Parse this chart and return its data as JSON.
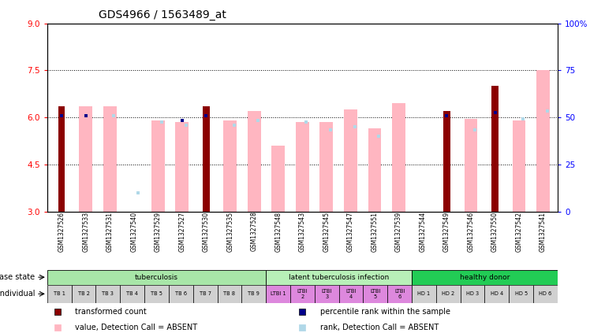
{
  "title": "GDS4966 / 1563489_at",
  "samples": [
    "GSM1327526",
    "GSM1327533",
    "GSM1327531",
    "GSM1327540",
    "GSM1327529",
    "GSM1327527",
    "GSM1327530",
    "GSM1327535",
    "GSM1327528",
    "GSM1327548",
    "GSM1327543",
    "GSM1327545",
    "GSM1327547",
    "GSM1327551",
    "GSM1327539",
    "GSM1327544",
    "GSM1327549",
    "GSM1327546",
    "GSM1327550",
    "GSM1327542",
    "GSM1327541"
  ],
  "transformed_count": [
    6.35,
    null,
    null,
    null,
    null,
    null,
    6.35,
    null,
    null,
    null,
    null,
    null,
    null,
    null,
    null,
    null,
    6.2,
    null,
    7.0,
    null,
    null
  ],
  "pct_rank": [
    6.05,
    6.05,
    null,
    null,
    null,
    5.9,
    6.05,
    null,
    null,
    null,
    null,
    null,
    null,
    null,
    null,
    null,
    6.05,
    null,
    6.15,
    null,
    null
  ],
  "absent_value": [
    null,
    6.35,
    6.35,
    null,
    5.9,
    5.85,
    null,
    5.9,
    6.2,
    5.1,
    5.85,
    5.85,
    6.25,
    5.65,
    6.45,
    null,
    null,
    5.95,
    null,
    5.9,
    7.5
  ],
  "absent_rank": [
    null,
    null,
    6.05,
    3.6,
    5.85,
    5.75,
    null,
    5.75,
    5.9,
    null,
    5.85,
    5.6,
    5.7,
    5.4,
    null,
    null,
    null,
    5.6,
    null,
    5.95,
    6.2
  ],
  "disease_groups": [
    {
      "label": "tuberculosis",
      "start": 0,
      "end": 9,
      "color": "#a8e6a8"
    },
    {
      "label": "latent tuberculosis infection",
      "start": 9,
      "end": 15,
      "color": "#b8f0b8"
    },
    {
      "label": "healthy donor",
      "start": 15,
      "end": 21,
      "color": "#22cc55"
    }
  ],
  "individual_labels": [
    "TB 1",
    "TB 2",
    "TB 3",
    "TB 4",
    "TB 5",
    "TB 6",
    "TB 7",
    "TB 8",
    "TB 9",
    "LTBI 1",
    "LTBI\n2",
    "LTBI\n3",
    "LTBI\n4",
    "LTBI\n5",
    "LTBI\n6",
    "HD 1",
    "HD 2",
    "HD 3",
    "HD 4",
    "HD 5",
    "HD 6"
  ],
  "individual_colors": [
    "#d0d0d0",
    "#d0d0d0",
    "#d0d0d0",
    "#d0d0d0",
    "#d0d0d0",
    "#d0d0d0",
    "#d0d0d0",
    "#d0d0d0",
    "#d0d0d0",
    "#dd88dd",
    "#dd88dd",
    "#dd88dd",
    "#dd88dd",
    "#dd88dd",
    "#dd88dd",
    "#d0d0d0",
    "#d0d0d0",
    "#d0d0d0",
    "#d0d0d0",
    "#d0d0d0",
    "#d0d0d0"
  ],
  "ylim_left": [
    3,
    9
  ],
  "ylim_right": [
    0,
    100
  ],
  "yticks_left": [
    3,
    4.5,
    6,
    7.5,
    9
  ],
  "yticks_right": [
    0,
    25,
    50,
    75,
    100
  ],
  "dark_red": "#8B0000",
  "dark_blue": "#00008B",
  "light_pink": "#FFB6C1",
  "light_blue": "#B0D8E8",
  "wide_bar_width": 0.55,
  "narrow_bar_width": 0.28
}
